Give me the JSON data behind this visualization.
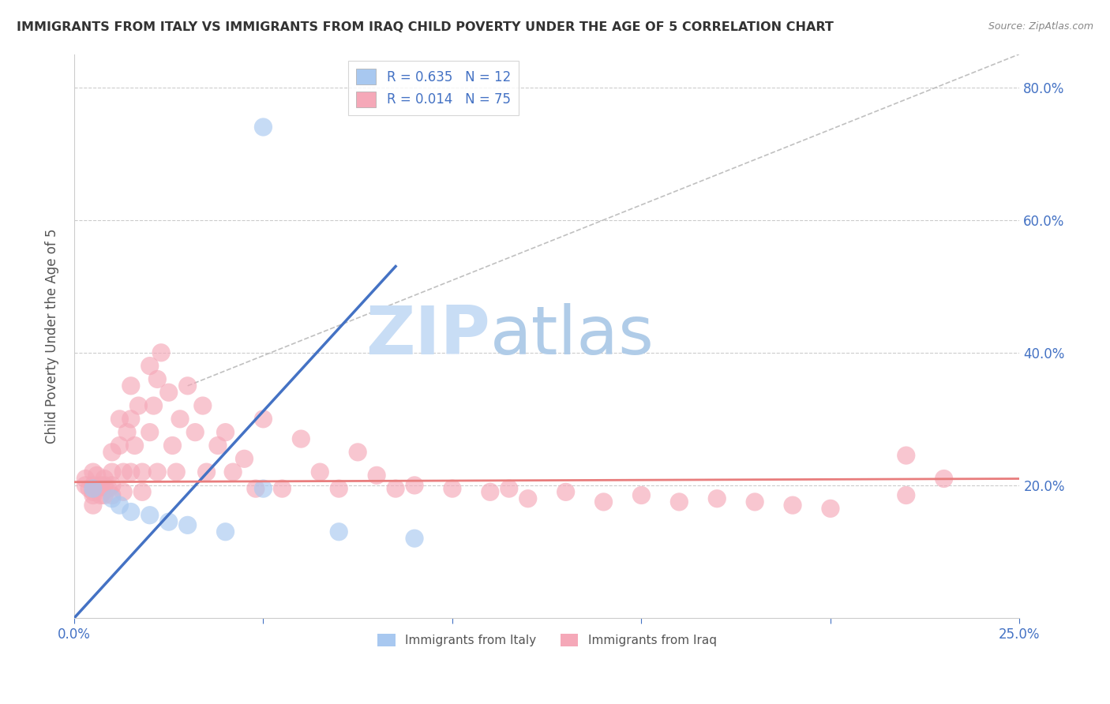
{
  "title": "IMMIGRANTS FROM ITALY VS IMMIGRANTS FROM IRAQ CHILD POVERTY UNDER THE AGE OF 5 CORRELATION CHART",
  "source": "Source: ZipAtlas.com",
  "ylabel": "Child Poverty Under the Age of 5",
  "x_min": 0.0,
  "x_max": 0.25,
  "y_min": 0.0,
  "y_max": 0.85,
  "x_ticks": [
    0.0,
    0.05,
    0.1,
    0.15,
    0.2,
    0.25
  ],
  "x_tick_labels": [
    "0.0%",
    "",
    "",
    "",
    "",
    "25.0%"
  ],
  "y_ticks": [
    0.0,
    0.2,
    0.4,
    0.6,
    0.8
  ],
  "y_tick_labels": [
    "",
    "20.0%",
    "40.0%",
    "60.0%",
    "80.0%"
  ],
  "italy_color": "#a8c8f0",
  "iraq_color": "#f5a8b8",
  "italy_R": 0.635,
  "italy_N": 12,
  "iraq_R": 0.014,
  "iraq_N": 75,
  "watermark_zip": "ZIP",
  "watermark_atlas": "atlas",
  "watermark_color_zip": "#c8ddf5",
  "watermark_color_atlas": "#b0cce8",
  "legend_label_italy": "Immigrants from Italy",
  "legend_label_iraq": "Immigrants from Iraq",
  "italy_scatter_x": [
    0.005,
    0.01,
    0.012,
    0.015,
    0.02,
    0.025,
    0.03,
    0.04,
    0.05,
    0.07,
    0.09,
    0.05
  ],
  "italy_scatter_y": [
    0.195,
    0.18,
    0.17,
    0.16,
    0.155,
    0.145,
    0.14,
    0.13,
    0.195,
    0.13,
    0.12,
    0.74
  ],
  "iraq_scatter_x": [
    0.003,
    0.003,
    0.004,
    0.005,
    0.005,
    0.005,
    0.005,
    0.006,
    0.006,
    0.007,
    0.007,
    0.008,
    0.008,
    0.008,
    0.009,
    0.01,
    0.01,
    0.01,
    0.01,
    0.012,
    0.012,
    0.013,
    0.013,
    0.014,
    0.015,
    0.015,
    0.015,
    0.016,
    0.017,
    0.018,
    0.018,
    0.02,
    0.02,
    0.021,
    0.022,
    0.022,
    0.023,
    0.025,
    0.026,
    0.027,
    0.028,
    0.03,
    0.032,
    0.034,
    0.035,
    0.038,
    0.04,
    0.042,
    0.045,
    0.048,
    0.05,
    0.055,
    0.06,
    0.065,
    0.07,
    0.075,
    0.08,
    0.085,
    0.09,
    0.1,
    0.11,
    0.115,
    0.12,
    0.13,
    0.14,
    0.15,
    0.16,
    0.17,
    0.18,
    0.19,
    0.2,
    0.22,
    0.23,
    0.22,
    0.005
  ],
  "iraq_scatter_y": [
    0.21,
    0.2,
    0.195,
    0.19,
    0.22,
    0.2,
    0.185,
    0.195,
    0.215,
    0.2,
    0.185,
    0.21,
    0.2,
    0.185,
    0.195,
    0.25,
    0.22,
    0.2,
    0.185,
    0.3,
    0.26,
    0.22,
    0.19,
    0.28,
    0.35,
    0.3,
    0.22,
    0.26,
    0.32,
    0.22,
    0.19,
    0.38,
    0.28,
    0.32,
    0.22,
    0.36,
    0.4,
    0.34,
    0.26,
    0.22,
    0.3,
    0.35,
    0.28,
    0.32,
    0.22,
    0.26,
    0.28,
    0.22,
    0.24,
    0.195,
    0.3,
    0.195,
    0.27,
    0.22,
    0.195,
    0.25,
    0.215,
    0.195,
    0.2,
    0.195,
    0.19,
    0.195,
    0.18,
    0.19,
    0.175,
    0.185,
    0.175,
    0.18,
    0.175,
    0.17,
    0.165,
    0.245,
    0.21,
    0.185,
    0.17
  ],
  "bg_color": "#ffffff",
  "title_color": "#333333",
  "axis_label_color": "#555555",
  "tick_color_right": "#4472c4",
  "tick_color_bottom": "#4472c4",
  "grid_color": "#cccccc",
  "trendline_italy_color": "#4472c4",
  "trendline_iraq_color": "#e87d7d",
  "diag_line_color": "#c0c0c0",
  "italy_trendline_x": [
    0.0,
    0.085
  ],
  "italy_trendline_y": [
    0.0,
    0.53
  ],
  "iraq_trendline_x": [
    0.0,
    0.25
  ],
  "iraq_trendline_y": [
    0.205,
    0.21
  ],
  "diag_line_x": [
    0.03,
    0.25
  ],
  "diag_line_y": [
    0.35,
    0.85
  ]
}
